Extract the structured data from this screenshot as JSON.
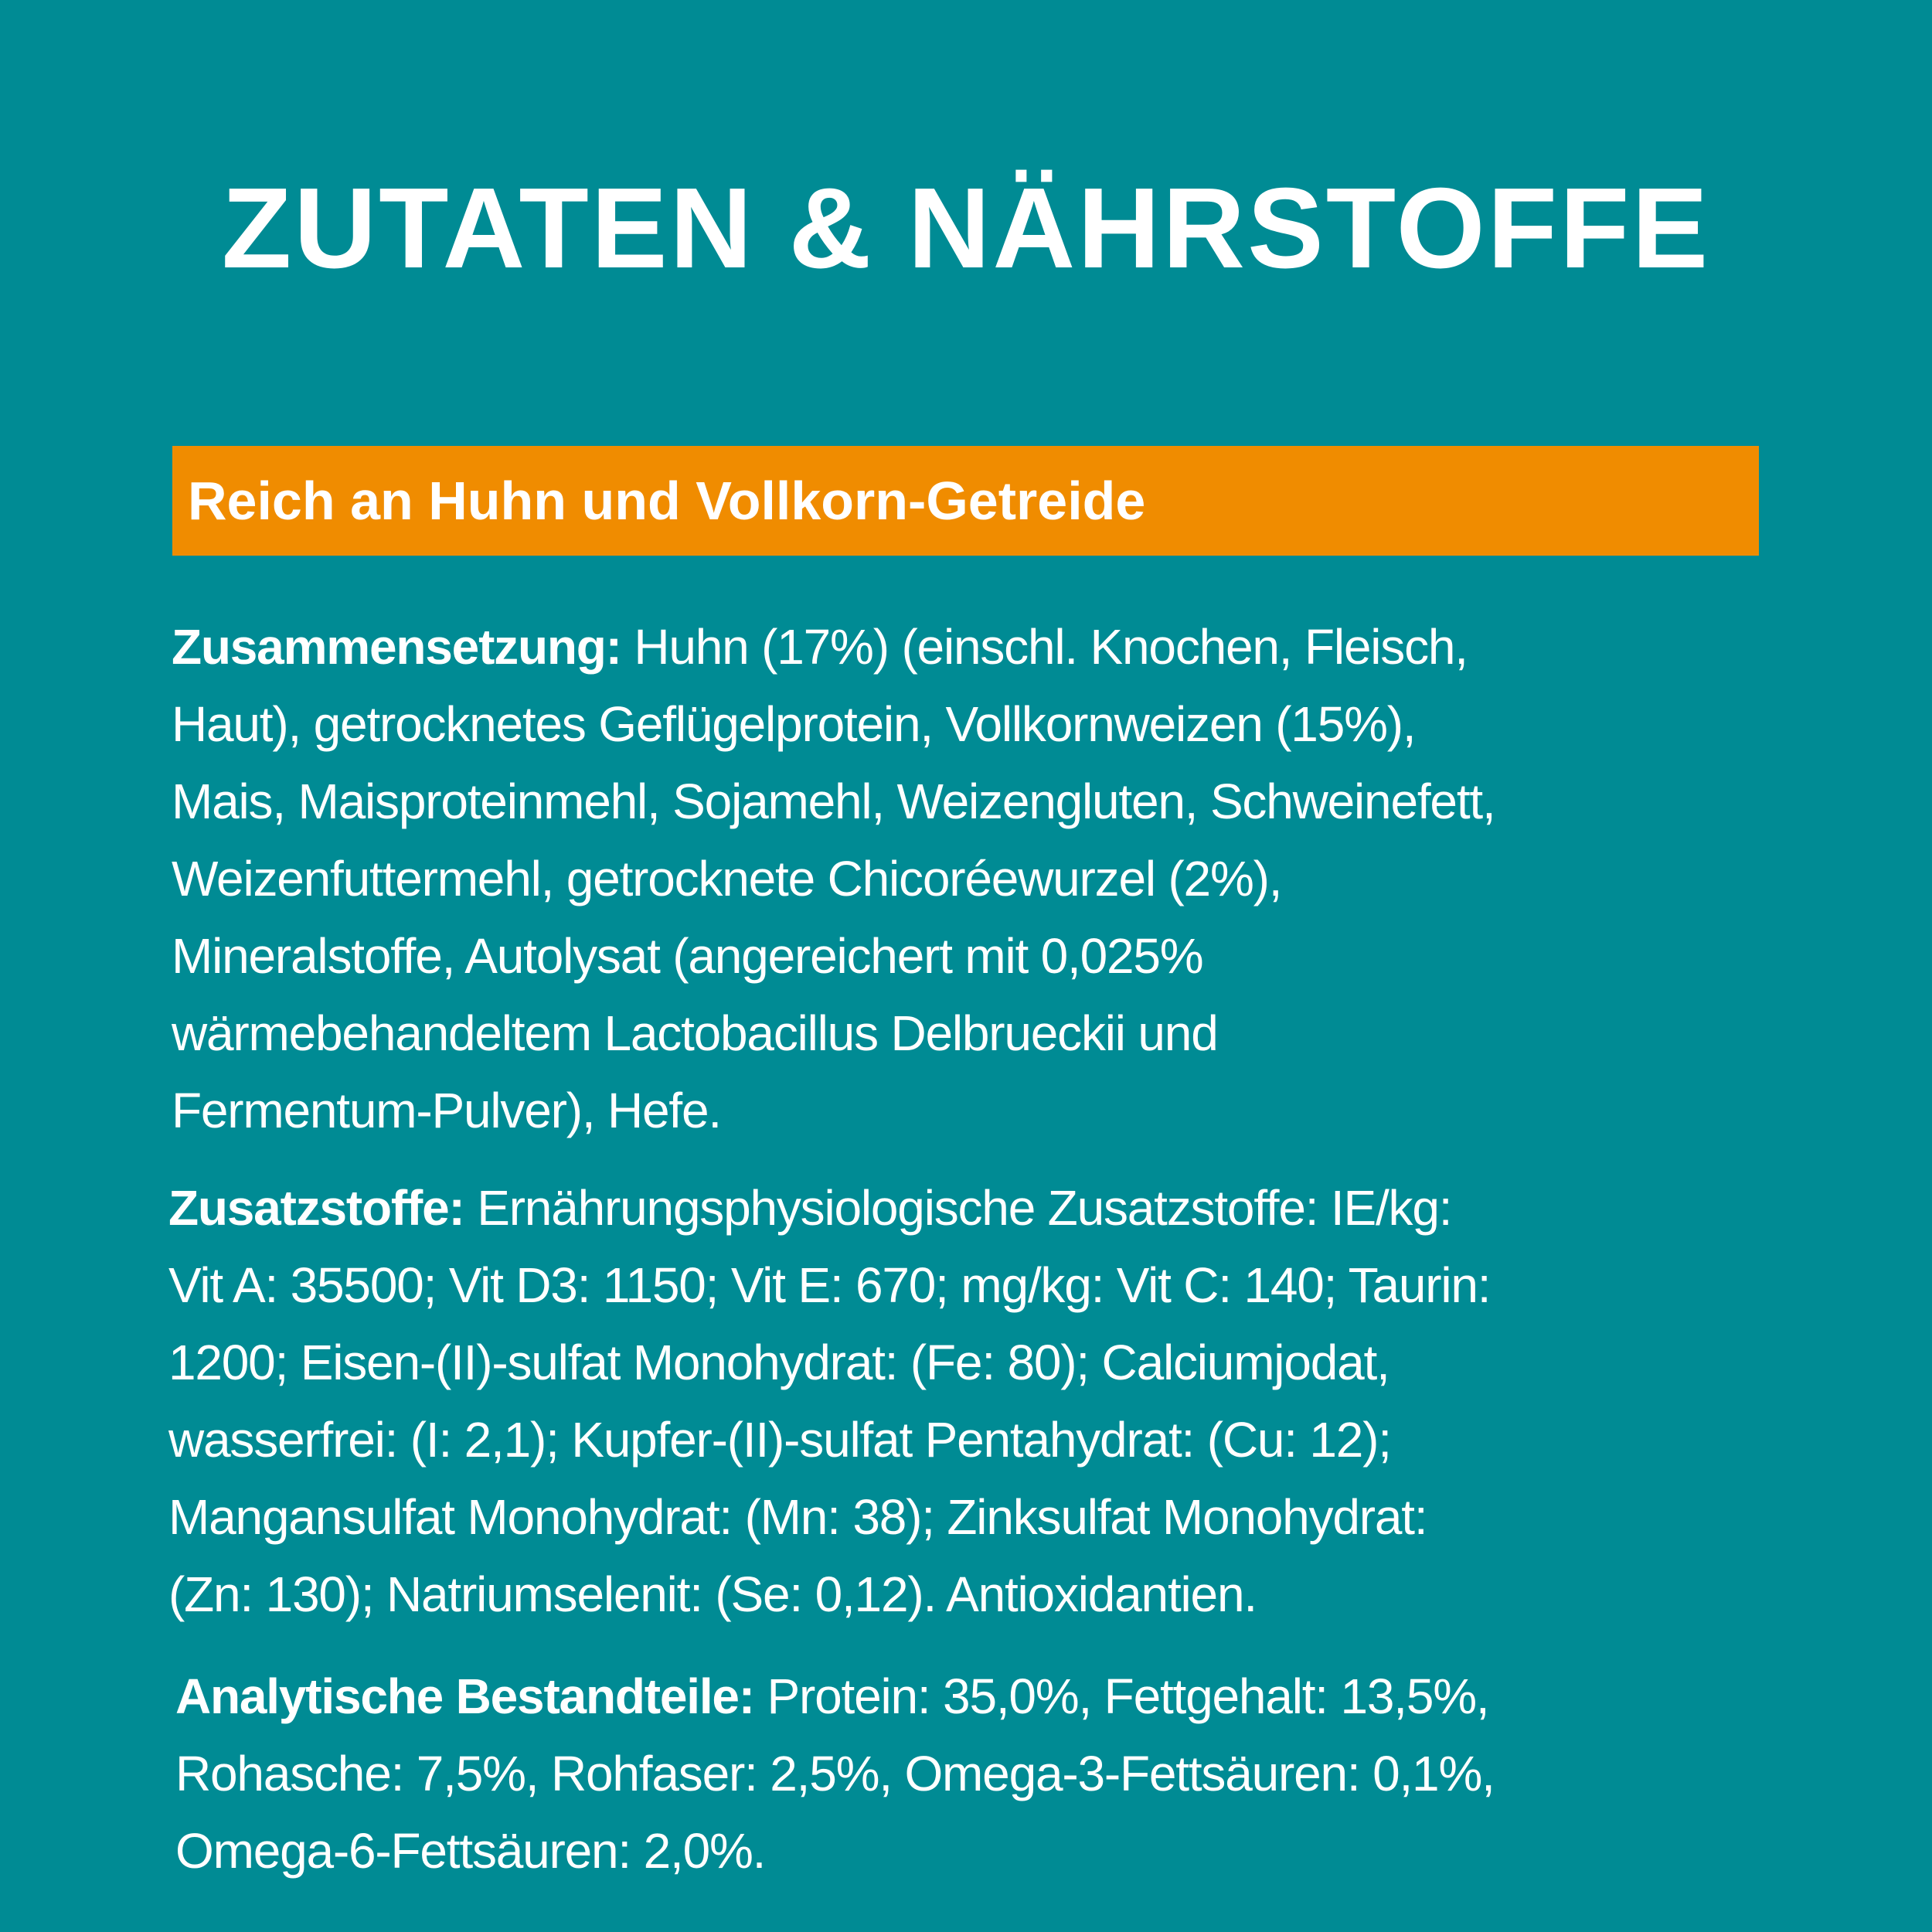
{
  "title": "ZUTATEN & NÄHRSTOFFE",
  "highlight": "Reich an Huhn und Vollkorn-Getreide",
  "colors": {
    "background": "#008b94",
    "banner": "#f08c00",
    "text": "#ffffff"
  },
  "composition": {
    "label": "Zusammensetzung:",
    "lines": [
      " Huhn (17%) (einschl. Knochen, Fleisch,",
      "Haut), getrocknetes Geflügelprotein, Vollkornweizen (15%),",
      "Mais, Maisproteinmehl, Sojamehl, Weizengluten, Schweinefett,",
      "Weizenfuttermehl, getrocknete Chicoréewurzel (2%),",
      "Mineralstoffe, Autolysat (angereichert mit 0,025%",
      "wärmebehandeltem Lactobacillus Delbrueckii und",
      "Fermentum-Pulver), Hefe."
    ]
  },
  "additives": {
    "label": "Zusatzstoffe:",
    "lines": [
      " Ernährungsphysiologische Zusatzstoffe: IE/kg:",
      "Vit A: 35500; Vit D3: 1150; Vit E: 670; mg/kg: Vit C: 140; Taurin:",
      "1200; Eisen-(II)-sulfat Monohydrat: (Fe: 80); Calciumjodat,",
      "wasserfrei: (I: 2,1); Kupfer-(II)-sulfat Pentahydrat: (Cu: 12);",
      "Mangansulfat Monohydrat: (Mn: 38); Zinksulfat Monohydrat:",
      "(Zn: 130); Natriumselenit: (Se: 0,12). Antioxidantien."
    ]
  },
  "analytics": {
    "label": "Analytische Bestandteile:",
    "lines": [
      " Protein: 35,0%, Fettgehalt: 13,5%,",
      "Rohasche: 7,5%, Rohfaser: 2,5%, Omega-3-Fettsäuren: 0,1%,",
      "Omega-6-Fettsäuren: 2,0%."
    ]
  }
}
